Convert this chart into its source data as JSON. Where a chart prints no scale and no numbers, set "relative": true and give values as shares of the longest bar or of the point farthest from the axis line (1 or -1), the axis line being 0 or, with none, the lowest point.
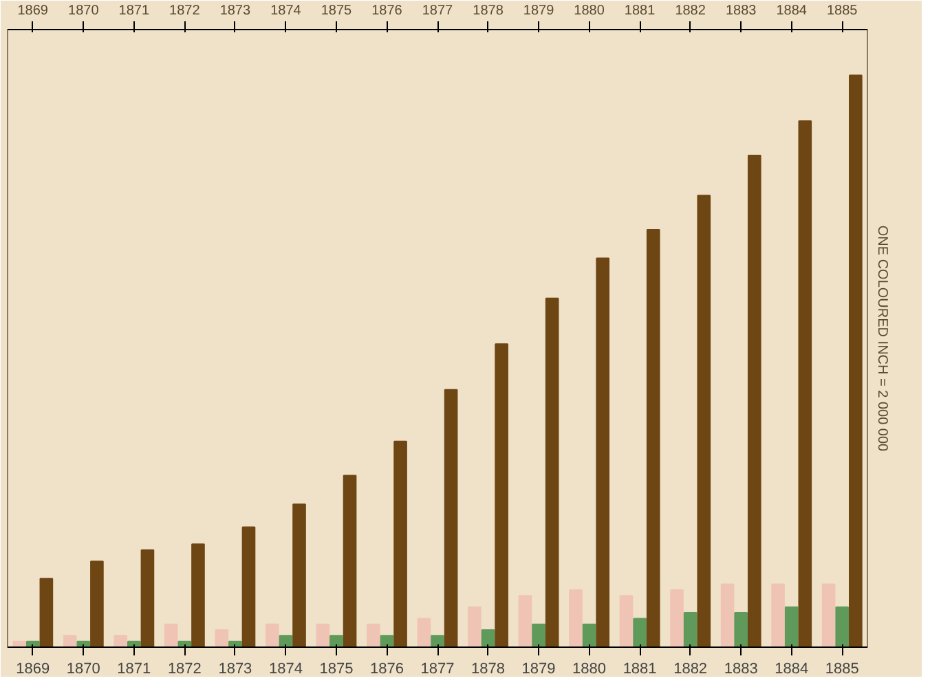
{
  "chart_data": {
    "type": "bar",
    "relative": true,
    "categories": [
      "1869",
      "1870",
      "1871",
      "1872",
      "1873",
      "1874",
      "1875",
      "1876",
      "1877",
      "1878",
      "1879",
      "1880",
      "1881",
      "1882",
      "1883",
      "1884",
      "1885"
    ],
    "series": [
      {
        "color": "#f0c4b4",
        "values": [
          0.01,
          0.02,
          0.02,
          0.04,
          0.03,
          0.04,
          0.04,
          0.04,
          0.05,
          0.07,
          0.09,
          0.1,
          0.09,
          0.1,
          0.11,
          0.11,
          0.11
        ]
      },
      {
        "color": "#5f9a5a",
        "values": [
          0.01,
          0.01,
          0.01,
          0.01,
          0.01,
          0.02,
          0.02,
          0.02,
          0.02,
          0.03,
          0.04,
          0.04,
          0.05,
          0.06,
          0.06,
          0.07,
          0.07
        ]
      },
      {
        "color": "#6e4614",
        "values": [
          0.12,
          0.15,
          0.17,
          0.18,
          0.21,
          0.25,
          0.3,
          0.36,
          0.45,
          0.53,
          0.61,
          0.68,
          0.73,
          0.79,
          0.86,
          0.92,
          1
        ]
      }
    ],
    "annotations": [
      "ONE COLOURED INCH = 2 000 000"
    ],
    "grid": false
  }
}
